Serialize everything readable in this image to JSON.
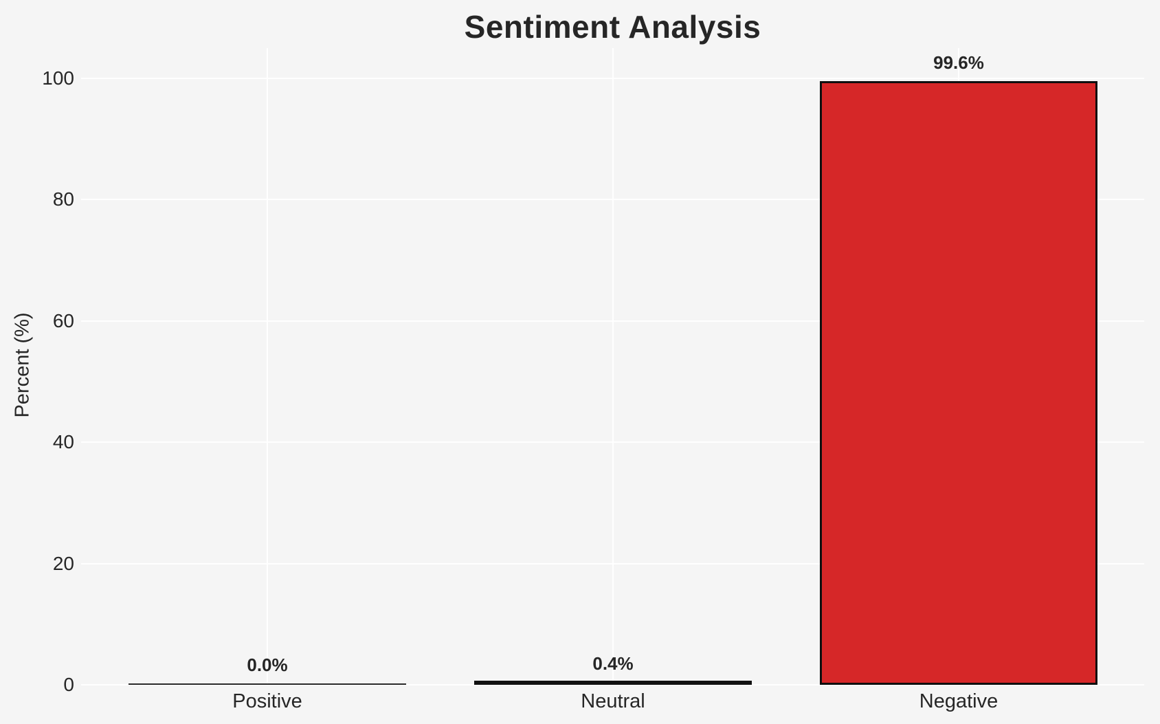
{
  "chart_data": {
    "type": "bar",
    "title": "Sentiment Analysis",
    "ylabel": "Percent (%)",
    "xlabel": "",
    "categories": [
      "Positive",
      "Neutral",
      "Negative"
    ],
    "values": [
      0.0,
      0.4,
      99.6
    ],
    "value_labels": [
      "0.0%",
      "0.4%",
      "99.6%"
    ],
    "yticks": [
      0,
      20,
      40,
      60,
      80,
      100
    ],
    "ytick_labels": [
      "0",
      "20",
      "40",
      "60",
      "80",
      "100"
    ],
    "ylim": [
      0,
      105
    ],
    "grid": true,
    "grid_orientation": "horizontal-and-vertical",
    "legend": false,
    "colors": {
      "background": "#f5f5f5",
      "gridline": "#ffffff",
      "negative_bar_fill": "#d62728",
      "bar_edge": "#0f0f0f",
      "small_bar_apparent": [
        "#2a2a2a",
        "#111111"
      ],
      "text": "#262626"
    }
  }
}
